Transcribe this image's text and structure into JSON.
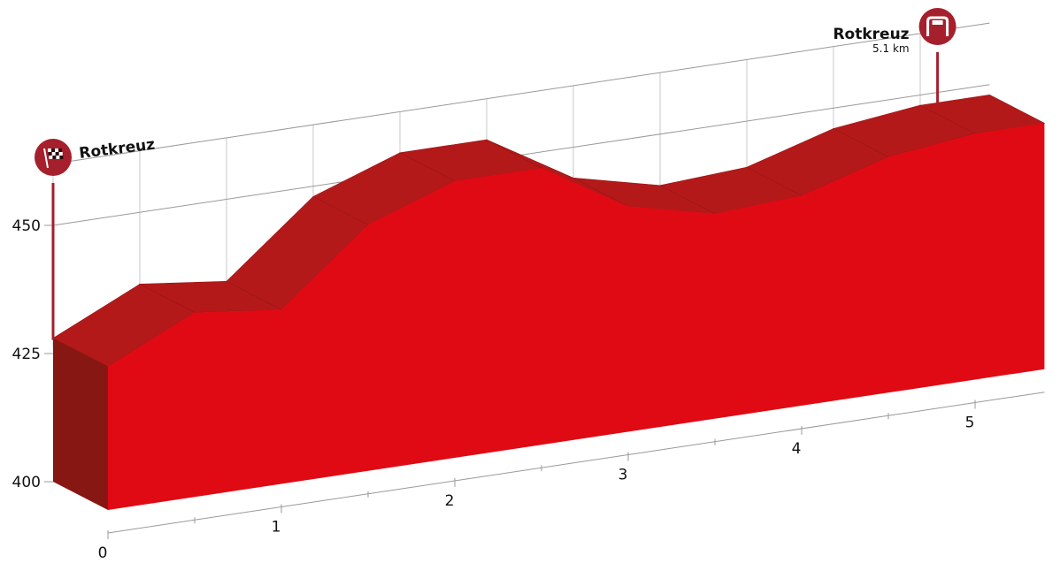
{
  "chart_data": {
    "type": "area",
    "xlabel": "",
    "ylabel": "",
    "x_unit": "km",
    "x_ticks": [
      0,
      1,
      2,
      3,
      4,
      5
    ],
    "y_ticks": [
      400,
      425,
      450
    ],
    "xlim": [
      0,
      5.4
    ],
    "ylim": [
      400,
      450
    ],
    "grid": true,
    "series": [
      {
        "x": [
          0,
          0.5,
          1,
          1.5,
          2,
          2.5,
          3,
          3.5,
          4,
          4.5,
          5,
          5.4
        ],
        "y": [
          428,
          436,
          434,
          448,
          454,
          454,
          444,
          440,
          441,
          446,
          448,
          448
        ]
      }
    ],
    "markers": [
      {
        "kind": "start",
        "icon": "checkered-flag-icon",
        "label": "Rotkreuz",
        "sublabel": "",
        "x": 0
      },
      {
        "kind": "finish",
        "icon": "finish-arch-icon",
        "label": "Rotkreuz",
        "sublabel": "5.1 km",
        "x": 5.1
      }
    ],
    "colors": {
      "front": "#e00a14",
      "top": "#b4191a",
      "side": "#861712",
      "marker": "#a51f2c",
      "grid": "#dadada",
      "axis": "#999999"
    }
  }
}
